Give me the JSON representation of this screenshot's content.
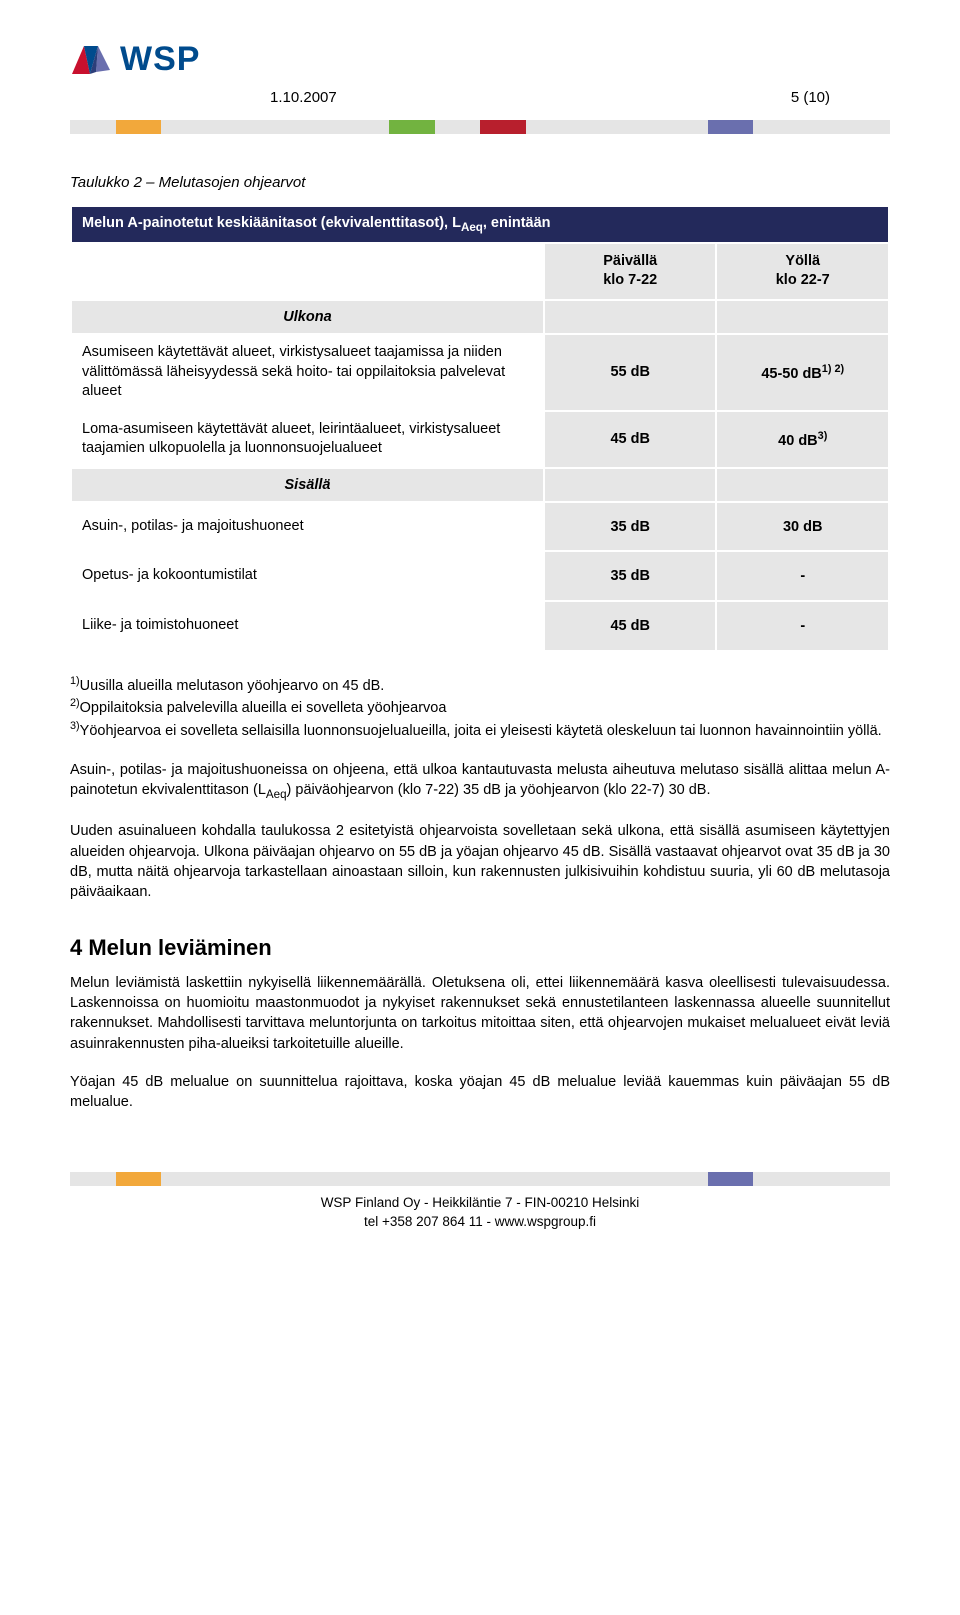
{
  "strip_colors": [
    "#e5e5e5",
    "#f2a83b",
    "#e5e5e5",
    "#e5e5e5",
    "#e5e5e5",
    "#e5e5e5",
    "#e5e5e5",
    "#72b340",
    "#e5e5e5",
    "#b81f2d",
    "#e5e5e5",
    "#e5e5e5",
    "#e5e5e5",
    "#e5e5e5",
    "#6a6fae",
    "#e5e5e5",
    "#e5e5e5",
    "#e5e5e5"
  ],
  "footer_strip_colors": [
    "#e5e5e5",
    "#f2a83b",
    "#e5e5e5",
    "#e5e5e5",
    "#e5e5e5",
    "#e5e5e5",
    "#e5e5e5",
    "#e5e5e5",
    "#e5e5e5",
    "#e5e5e5",
    "#e5e5e5",
    "#e5e5e5",
    "#e5e5e5",
    "#e5e5e5",
    "#6a6fae",
    "#e5e5e5",
    "#e5e5e5",
    "#e5e5e5"
  ],
  "header": {
    "logo_text": "WSP",
    "date": "1.10.2007",
    "page_label": "5 (10)"
  },
  "table": {
    "title": "Taulukko 2 – Melutasojen ohjearvot",
    "caption_html": "Melun A-painotetut keskiäänitasot (ekvivalenttitasot), L<sub>Aeq</sub>, enintään",
    "col_day_html": "Päivällä<br>klo 7-22",
    "col_night_html": "Yöllä<br>klo 22-7",
    "cat_outdoor": "Ulkona",
    "cat_indoor": "Sisällä",
    "rows": [
      {
        "label": "Asumiseen käytettävät alueet, virkistysalueet taajamissa ja niiden välittömässä läheisyydessä sekä hoito- tai oppilaitoksia palvelevat alueet",
        "day_html": "55 dB",
        "night_html": "45-50 dB<sup>1) 2)</sup>"
      },
      {
        "label": "Loma-asumiseen käytettävät alueet, leirintäalueet, virkistysalueet taajamien ulkopuolella ja luonnonsuojelualueet",
        "day_html": "45 dB",
        "night_html": "40 dB<sup>3)</sup>"
      },
      {
        "label": "Asuin-, potilas- ja majoitushuoneet",
        "day_html": "35 dB",
        "night_html": "30 dB"
      },
      {
        "label": "Opetus- ja kokoontumistilat",
        "day_html": "35 dB",
        "night_html": "-"
      },
      {
        "label": "Liike- ja toimistohuoneet",
        "day_html": "45 dB",
        "night_html": "-"
      }
    ]
  },
  "footnotes_html": "<sup>1)</sup>Uusilla alueilla melutason yöohjearvo on 45 dB.<br><sup>2)</sup>Oppilaitoksia palvelevilla alueilla ei sovelleta yöohjearvoa<br><sup>3)</sup>Yöohjearvoa ei sovelleta sellaisilla luonnonsuojelualueilla, joita ei yleisesti käytetä oleskeluun tai luonnon havainnointiin yöllä.",
  "paragraphs": [
    "Asuin-, potilas- ja majoitushuoneissa on ohjeena, että ulkoa kantautuvasta melusta aiheutuva melutaso sisällä alittaa melun A-painotetun ekvivalenttitason (L<sub>Aeq</sub>) päiväohjearvon (klo 7-22) 35 dB ja yöohjearvon (klo 22-7) 30 dB.",
    "Uuden asuinalueen kohdalla taulukossa 2 esitetyistä ohjearvoista sovelletaan sekä ulkona, että sisällä asumiseen käytettyjen alueiden ohjearvoja. Ulkona päiväajan ohjearvo on 55 dB ja yöajan ohjearvo 45 dB. Sisällä vastaavat ohjearvot ovat 35 dB ja 30 dB, mutta näitä ohjearvoja tarkastellaan ainoastaan silloin, kun rakennusten julkisivuihin kohdistuu suuria, yli 60 dB melutasoja päiväaikaan."
  ],
  "section4": {
    "heading": "4   Melun leviäminen",
    "paragraphs": [
      "Melun leviämistä laskettiin nykyisellä liikennemäärällä. Oletuksena oli, ettei liikennemäärä kasva oleellisesti tulevaisuudessa. Laskennoissa on huomioitu maastonmuodot ja nykyiset rakennukset sekä ennustetilanteen laskennassa alueelle suunnitellut rakennukset. Mahdollisesti tarvittava meluntorjunta on tarkoitus mitoittaa siten, että ohjearvojen mukaiset melualueet eivät leviä asuinrakennusten piha-alueiksi tarkoitetuille alueille.",
      "Yöajan 45 dB melualue on suunnittelua rajoittava, koska yöajan 45 dB melualue leviää kauemmas kuin päiväajan 55 dB melualue."
    ]
  },
  "footer": {
    "line1": "WSP Finland Oy   -   Heikkiläntie 7   -   FIN-00210 Helsinki",
    "line2": "tel +358 207 864 11 - www.wspgroup.fi"
  }
}
